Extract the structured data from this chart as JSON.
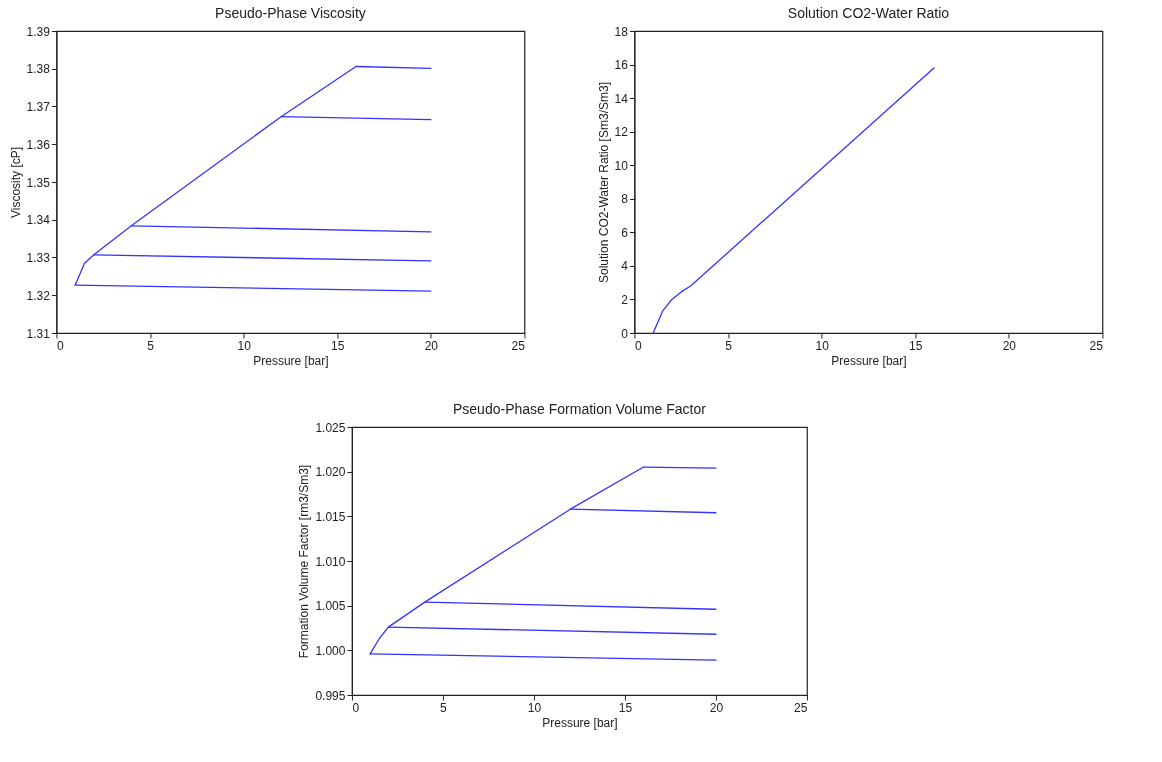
{
  "chart_data": [
    {
      "type": "line",
      "title": "Pseudo-Phase Viscosity",
      "xlabel": "Pressure [bar]",
      "ylabel": "Viscosity [cP]",
      "xlim": [
        0,
        25
      ],
      "xticks": [
        0,
        5,
        10,
        15,
        20,
        25
      ],
      "ylim": [
        1.31,
        1.39
      ],
      "yticks": [
        1.31,
        1.32,
        1.33,
        1.34,
        1.35,
        1.36,
        1.37,
        1.38,
        1.39
      ],
      "series": [
        {
          "color": "#3333ff",
          "x": [
            1,
            1.5,
            2,
            4,
            12,
            16
          ],
          "values": [
            1.3227,
            1.3285,
            1.3307,
            1.3384,
            1.3673,
            1.3806
          ]
        },
        {
          "color": "#3333ff",
          "x": [
            1,
            20
          ],
          "values": [
            1.3227,
            1.3211
          ]
        },
        {
          "color": "#3333ff",
          "x": [
            2,
            20
          ],
          "values": [
            1.3307,
            1.3291
          ]
        },
        {
          "color": "#3333ff",
          "x": [
            4,
            20
          ],
          "values": [
            1.3384,
            1.3368
          ]
        },
        {
          "color": "#3333ff",
          "x": [
            12,
            20
          ],
          "values": [
            1.3673,
            1.3665
          ]
        },
        {
          "color": "#3333ff",
          "x": [
            16,
            20
          ],
          "values": [
            1.3806,
            1.3801
          ]
        }
      ]
    },
    {
      "type": "line",
      "title": "Solution CO2-Water Ratio",
      "xlabel": "Pressure [bar]",
      "ylabel": "Solution CO2-Water Ratio [Sm3/Sm3]",
      "xlim": [
        0,
        25
      ],
      "xticks": [
        0,
        5,
        10,
        15,
        20,
        25
      ],
      "ylim": [
        0,
        18
      ],
      "yticks": [
        0,
        2,
        4,
        6,
        8,
        10,
        12,
        14,
        16,
        18
      ],
      "series": [
        {
          "color": "#3333ff",
          "x": [
            1,
            1.5,
            2,
            2.5,
            3,
            16
          ],
          "values": [
            0,
            1.3,
            2.0,
            2.45,
            2.8,
            15.8
          ]
        }
      ]
    },
    {
      "type": "line",
      "title": "Pseudo-Phase Formation Volume Factor",
      "xlabel": "Pressure [bar]",
      "ylabel": "Formation Volume Factor [rm3/Sm3]",
      "xlim": [
        0,
        25
      ],
      "xticks": [
        0,
        5,
        10,
        15,
        20,
        25
      ],
      "ylim": [
        0.995,
        1.025
      ],
      "yticks": [
        0.995,
        {
          "value": 1.0,
          "label": "1.000"
        },
        1.005,
        {
          "value": 1.01,
          "label": "1.010"
        },
        1.015,
        {
          "value": 1.02,
          "label": "1.020"
        },
        1.025
      ],
      "series": [
        {
          "color": "#3333ff",
          "x": [
            1,
            1.5,
            2,
            4,
            12,
            16
          ],
          "values": [
            0.9996,
            1.0013,
            1.0026,
            1.0054,
            1.0158,
            1.0205
          ]
        },
        {
          "color": "#3333ff",
          "x": [
            1,
            20
          ],
          "values": [
            0.9996,
            0.9989
          ]
        },
        {
          "color": "#3333ff",
          "x": [
            2,
            20
          ],
          "values": [
            1.0026,
            1.0018
          ]
        },
        {
          "color": "#3333ff",
          "x": [
            4,
            20
          ],
          "values": [
            1.0054,
            1.0046
          ]
        },
        {
          "color": "#3333ff",
          "x": [
            12,
            20
          ],
          "values": [
            1.0158,
            1.0154
          ]
        },
        {
          "color": "#3333ff",
          "x": [
            16,
            20
          ],
          "values": [
            1.0205,
            1.0204
          ]
        }
      ]
    }
  ]
}
